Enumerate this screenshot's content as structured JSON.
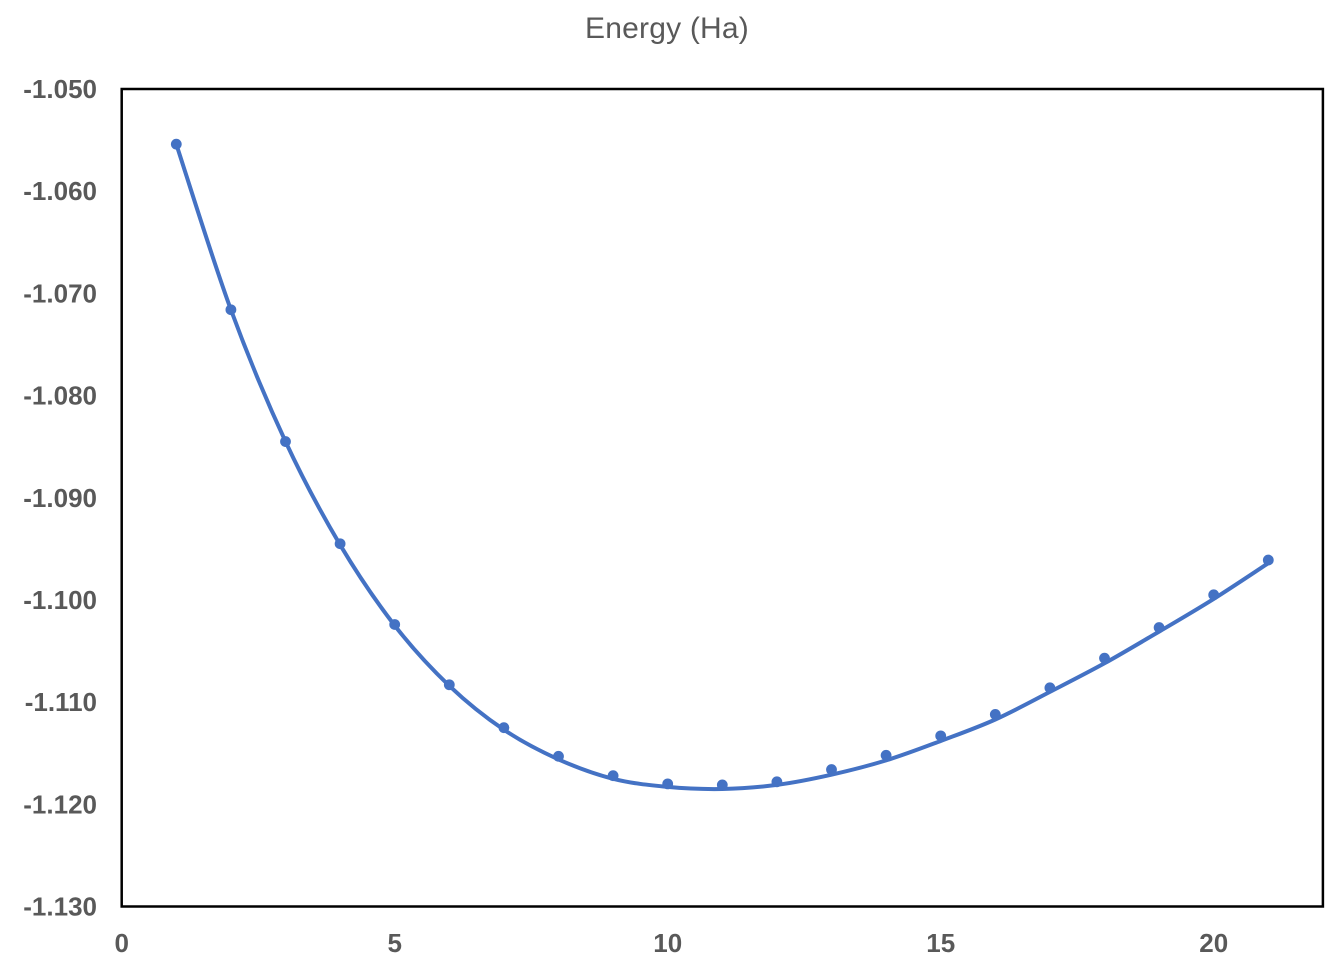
{
  "chart_data": {
    "type": "scatter",
    "title": "Energy (Ha)",
    "xlabel": "",
    "ylabel": "",
    "xlim": [
      0,
      22
    ],
    "ylim": [
      -1.13,
      -1.05
    ],
    "grid": false,
    "legend": false,
    "x": [
      1,
      2,
      3,
      4,
      5,
      6,
      7,
      8,
      9,
      10,
      11,
      12,
      13,
      14,
      15,
      16,
      17,
      18,
      19,
      20,
      21
    ],
    "series": [
      {
        "name": "Energy (Ha)",
        "values": [
          -1.0554,
          -1.0716,
          -1.0845,
          -1.0945,
          -1.1024,
          -1.1083,
          -1.1125,
          -1.1153,
          -1.1172,
          -1.118,
          -1.1181,
          -1.1178,
          -1.1166,
          -1.1152,
          -1.1133,
          -1.1112,
          -1.1086,
          -1.1057,
          -1.1027,
          -1.0995,
          -1.0961
        ]
      }
    ],
    "trendline": {
      "type": "smooth-fit",
      "values": [
        -1.0554,
        -1.0716,
        -1.0845,
        -1.0946,
        -1.1025,
        -1.1084,
        -1.1127,
        -1.1156,
        -1.1175,
        -1.1183,
        -1.1185,
        -1.1181,
        -1.1171,
        -1.1157,
        -1.1138,
        -1.1117,
        -1.109,
        -1.1062,
        -1.1031,
        -1.0999,
        -1.0964
      ]
    },
    "x_ticks": [
      {
        "label": "0",
        "value": 0
      },
      {
        "label": "5",
        "value": 5
      },
      {
        "label": "10",
        "value": 10
      },
      {
        "label": "15",
        "value": 15
      },
      {
        "label": "20",
        "value": 20
      }
    ],
    "y_ticks": [
      {
        "label": "-1.050",
        "value": -1.05
      },
      {
        "label": "-1.060",
        "value": -1.06
      },
      {
        "label": "-1.070",
        "value": -1.07
      },
      {
        "label": "-1.080",
        "value": -1.08
      },
      {
        "label": "-1.090",
        "value": -1.09
      },
      {
        "label": "-1.100",
        "value": -1.1
      },
      {
        "label": "-1.110",
        "value": -1.11
      },
      {
        "label": "-1.120",
        "value": -1.12
      },
      {
        "label": "-1.130",
        "value": -1.13
      }
    ],
    "colors": {
      "marker": "#4472C4",
      "line": "#4472C4",
      "axis_text": "#595959",
      "plot_border": "#000000",
      "background": "#ffffff"
    }
  }
}
